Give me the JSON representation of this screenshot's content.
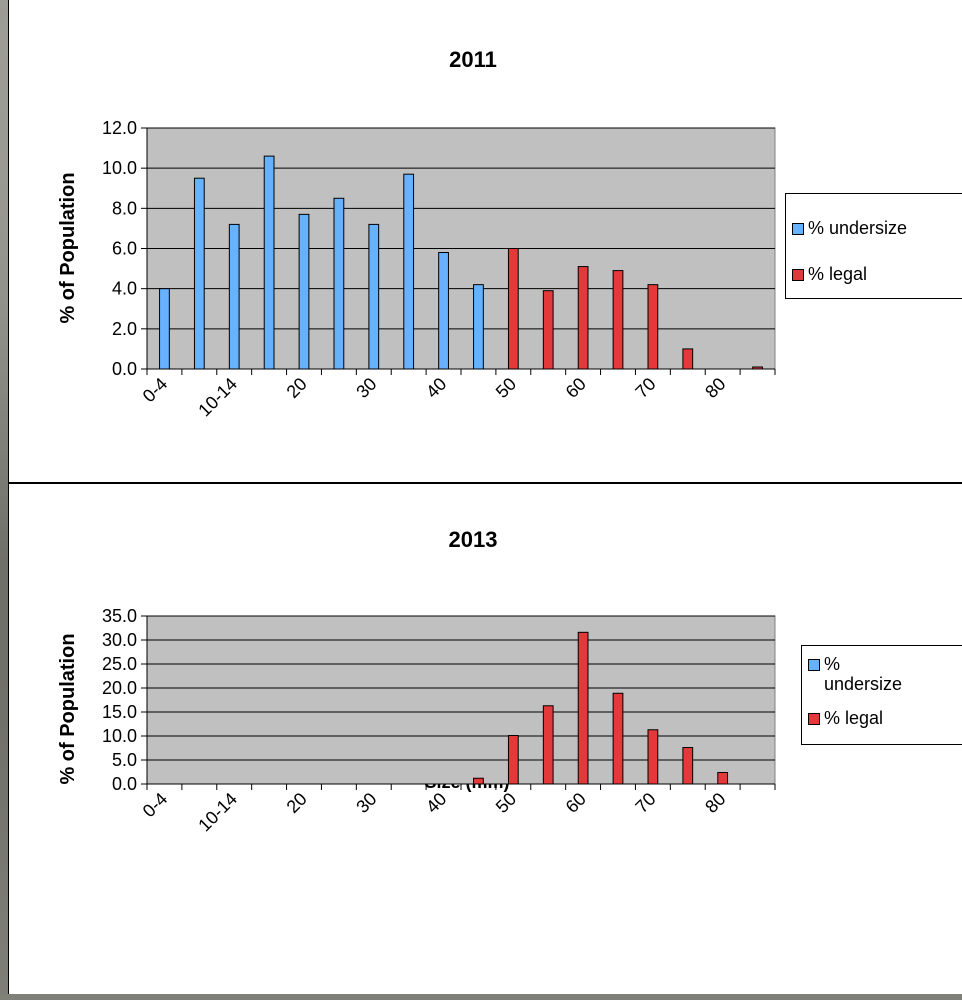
{
  "chart_data": [
    {
      "type": "bar",
      "title": "2011",
      "ylabel": "% of Population",
      "xlabel": "",
      "ylim": [
        0,
        12
      ],
      "y_ticks": [
        "0.0",
        "2.0",
        "4.0",
        "6.0",
        "8.0",
        "10.0",
        "12.0"
      ],
      "x_tick_labels": [
        "0-4",
        "10-14",
        "20",
        "30",
        "40",
        "50",
        "60",
        "70",
        "80"
      ],
      "num_categories": 18,
      "grid": true,
      "legend_position": "right",
      "series": [
        {
          "name": "% undersize",
          "color": "#66b2ff",
          "values": [
            4.0,
            9.5,
            7.2,
            10.6,
            7.7,
            8.5,
            7.2,
            9.7,
            5.8,
            4.2,
            0,
            0,
            0,
            0,
            0,
            0,
            0,
            0
          ]
        },
        {
          "name": "% legal",
          "color": "#e23a3a",
          "values": [
            0,
            0,
            0,
            0,
            0,
            0,
            0,
            0,
            0,
            0,
            6.0,
            3.9,
            5.1,
            4.9,
            4.2,
            1.0,
            0,
            0.1
          ]
        }
      ]
    },
    {
      "type": "bar",
      "title": "2013",
      "ylabel": "% of Population",
      "xlabel": "Size (mm)",
      "ylim": [
        0,
        35
      ],
      "y_ticks": [
        "0.0",
        "5.0",
        "10.0",
        "15.0",
        "20.0",
        "25.0",
        "30.0",
        "35.0"
      ],
      "x_tick_labels": [
        "0-4",
        "10-14",
        "20",
        "30",
        "40",
        "50",
        "60",
        "70",
        "80"
      ],
      "num_categories": 18,
      "grid": true,
      "legend_position": "right",
      "series": [
        {
          "name": "% undersize",
          "color": "#66b2ff",
          "values": [
            0,
            0,
            0,
            0,
            0,
            0,
            0,
            0,
            0,
            0,
            0,
            0,
            0,
            0,
            0,
            0,
            0,
            0
          ]
        },
        {
          "name": "% legal",
          "color": "#e23a3a",
          "values": [
            0,
            0,
            0,
            0,
            0,
            0,
            0,
            0,
            0,
            1.2,
            10.1,
            16.3,
            31.6,
            18.9,
            11.3,
            7.6,
            2.4,
            0
          ]
        }
      ]
    }
  ]
}
